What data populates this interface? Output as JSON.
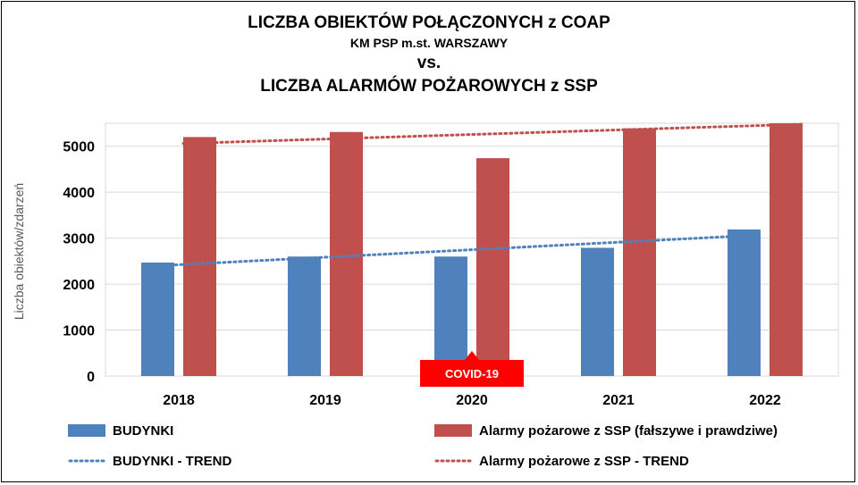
{
  "chart_data": {
    "type": "bar",
    "title": "LICZBA OBIEKTÓW POŁĄCZONYCH z COAP",
    "subtitle": "KM PSP m.st. WARSZAWY",
    "title_vs": "vs.",
    "title_2": "LICZBA ALARMÓW POŻAROWYCH z SSP",
    "ylabel": "Liczba obiektów/zdarzeń",
    "categories": [
      "2018",
      "2019",
      "2020",
      "2021",
      "2022"
    ],
    "yticks": [
      "0",
      "1000",
      "2000",
      "3000",
      "4000",
      "5000"
    ],
    "ylim": [
      0,
      5500
    ],
    "grid": true,
    "legend": "bottom",
    "series": [
      {
        "name": "BUDYNKI",
        "color": "#4F81BD",
        "values": [
          2470,
          2600,
          2600,
          2790,
          3190
        ]
      },
      {
        "name": "Alarmy pożarowe z SSP (fałszywe i prawdziwe)",
        "color": "#C0504D",
        "values": [
          5200,
          5310,
          4740,
          5390,
          5500
        ]
      }
    ],
    "trends": [
      {
        "name": "BUDYNKI - TREND",
        "color": "#4F81BD",
        "start": 2400,
        "end": 3060
      },
      {
        "name": "Alarmy pożarowe z SSP - TREND",
        "color": "#C0504D",
        "start": 5060,
        "end": 5480
      }
    ],
    "annotation": {
      "text": "COVID-19",
      "category": "2020",
      "color": "#FF0000"
    }
  }
}
